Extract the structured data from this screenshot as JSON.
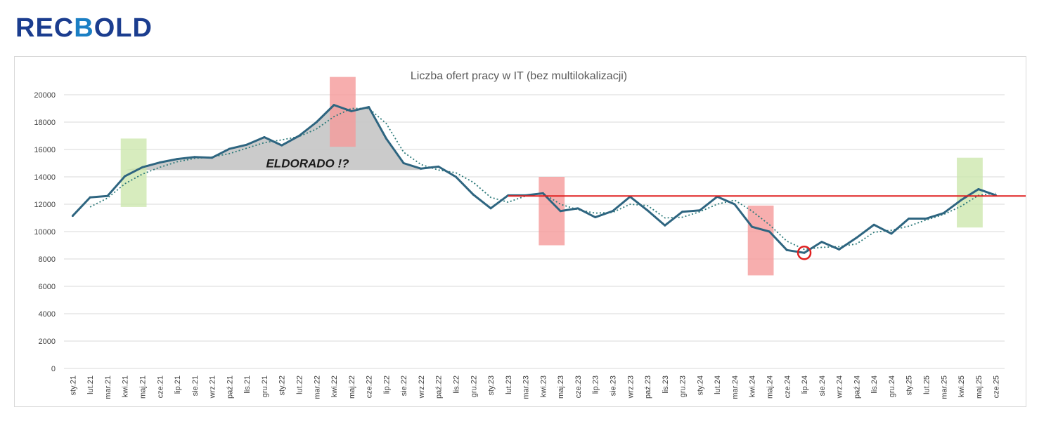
{
  "brand": {
    "logo_text": "RECBOLD",
    "logo_color": "#1b3d8f"
  },
  "chart_data": {
    "type": "line",
    "title": "Liczba ofert pracy w IT (bez multilokalizacji)",
    "xlabel": "",
    "ylabel": "",
    "ylim": [
      0,
      20000
    ],
    "yticks": [
      0,
      2000,
      4000,
      6000,
      8000,
      10000,
      12000,
      14000,
      16000,
      18000,
      20000
    ],
    "grid": true,
    "categories": [
      "sty.21",
      "lut.21",
      "mar.21",
      "kwi.21",
      "maj.21",
      "cze.21",
      "lip.21",
      "sie.21",
      "wrz.21",
      "paź.21",
      "lis.21",
      "gru.21",
      "sty.22",
      "lut.22",
      "mar.22",
      "kwi.22",
      "maj.22",
      "cze.22",
      "lip.22",
      "sie.22",
      "wrz.22",
      "paź.22",
      "lis.22",
      "gru.22",
      "sty.23",
      "lut.23",
      "mar.23",
      "kwi.23",
      "maj.23",
      "cze.23",
      "lip.23",
      "sie.23",
      "wrz.23",
      "paź.23",
      "lis.23",
      "gru.23",
      "sty.24",
      "lut.24",
      "mar.24",
      "kwi.24",
      "maj.24",
      "cze.24",
      "lip.24",
      "sie.24",
      "wrz.24",
      "paź.24",
      "lis.24",
      "gru.24",
      "sty.25",
      "lut.25",
      "mar.25",
      "kwi.25",
      "maj.25",
      "cze.25"
    ],
    "series": [
      {
        "values": [
          11150,
          12500,
          12600,
          14050,
          14700,
          15050,
          15300,
          15450,
          15400,
          16050,
          16350,
          16900,
          16300,
          17000,
          18000,
          19250,
          18800,
          19100,
          16800,
          15000,
          14600,
          14750,
          14000,
          12700,
          11700,
          12650,
          12650,
          12800,
          11500,
          11700,
          11050,
          11500,
          12550,
          11550,
          10450,
          11450,
          11550,
          12550,
          12000,
          10350,
          10000,
          8650,
          8450,
          9250,
          8700,
          9550,
          10500,
          9850,
          10950,
          10950,
          11350,
          12300,
          13100,
          12650
        ],
        "color": "#2e6580"
      }
    ],
    "trendline": {
      "style": "dotted",
      "color": "#2e7b7b",
      "values": [
        null,
        11800,
        12450,
        13500,
        14200,
        14700,
        15100,
        15350,
        15450,
        15700,
        16100,
        16500,
        16700,
        16950,
        17500,
        18400,
        19000,
        19000,
        17900,
        15800,
        14900,
        14500,
        14300,
        13600,
        12500,
        12150,
        12600,
        12800,
        12000,
        11600,
        11350,
        11400,
        12000,
        11900,
        11000,
        11050,
        11450,
        12000,
        12300,
        11500,
        10500,
        9300,
        8700,
        8850,
        8900,
        9100,
        9950,
        10100,
        10400,
        10850,
        11250,
        11850,
        12650,
        12800
      ]
    },
    "reference_line": {
      "value": 12600,
      "color": "#e02020"
    },
    "highlights": [
      {
        "kind": "green",
        "x_start": "kwi.21",
        "x_end": "maj.21",
        "y_range": [
          11800,
          16800
        ]
      },
      {
        "kind": "red",
        "x_start": "kwi.22",
        "x_end": "maj.22",
        "y_range": [
          16200,
          21300
        ]
      },
      {
        "kind": "red",
        "x_start": "kwi.23",
        "x_end": "maj.23",
        "y_range": [
          9000,
          14000
        ]
      },
      {
        "kind": "red",
        "x_start": "kwi.24",
        "x_end": "maj.24",
        "y_range": [
          6800,
          11900
        ]
      },
      {
        "kind": "green",
        "x_start": "kwi.25",
        "x_end": "maj.25",
        "y_range": [
          10300,
          15400
        ]
      }
    ],
    "eldorado_area": {
      "from": "kwi.21",
      "to": "wrz.22",
      "base": 14500,
      "color": "#c8c8c8"
    },
    "annotation": {
      "text": "ELDORADO !?",
      "at_x": "lut.22",
      "at_y": 15000
    },
    "marker": {
      "x": "lip.24",
      "y": 8450,
      "color": "#e02020"
    },
    "colors": {
      "green_box": "#c9e6a8",
      "red_box": "#f59a9a",
      "grid": "#d9d9d9",
      "axis_text": "#404040"
    }
  }
}
